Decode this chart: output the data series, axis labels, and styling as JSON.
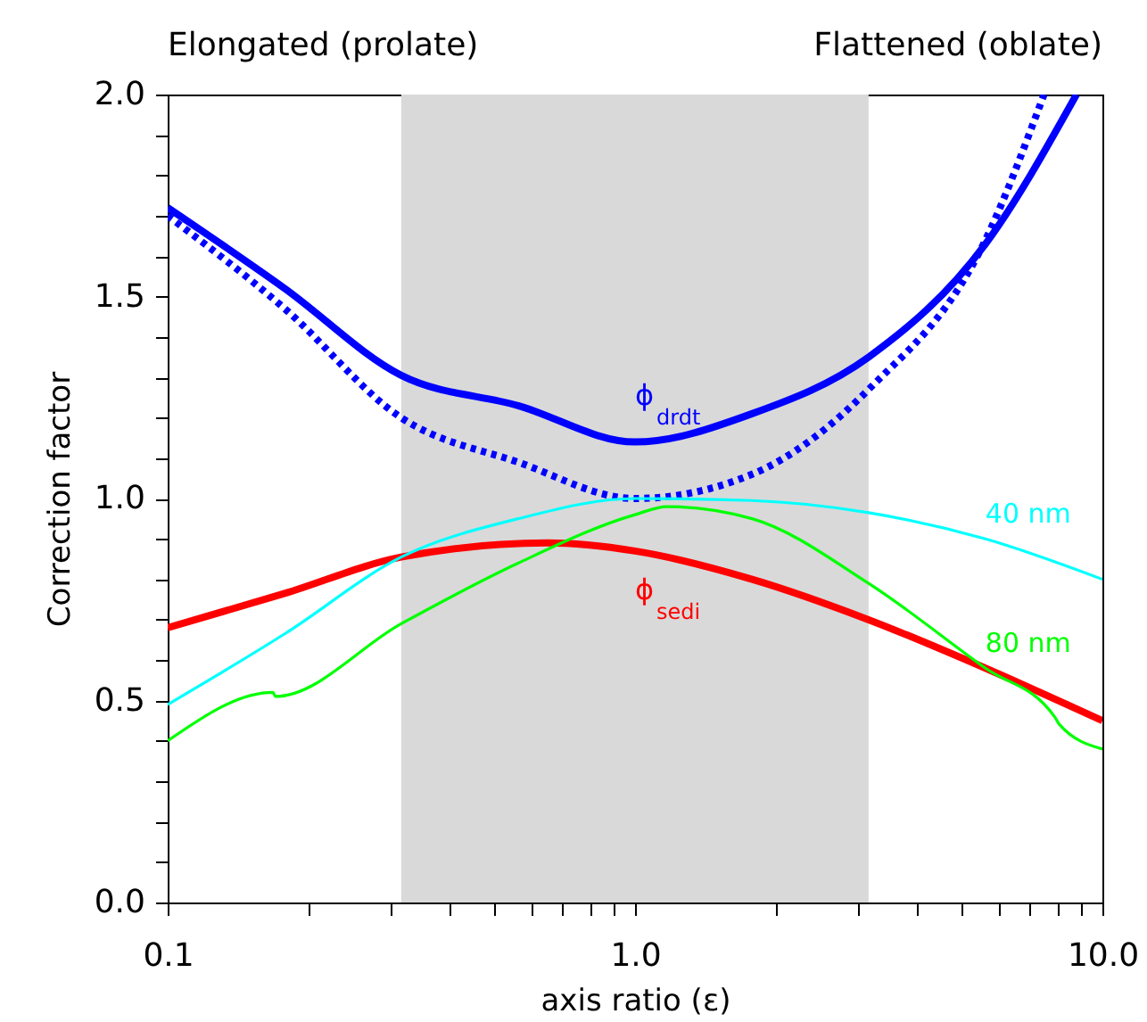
{
  "chart_data": {
    "type": "line",
    "xlabel": "axis ratio (ε)",
    "ylabel": "Correction factor",
    "log": "x",
    "xlim": [
      0.1,
      10
    ],
    "ylim": [
      0,
      2
    ],
    "xticks": [
      {
        "value": 0.1,
        "label": "0.1"
      },
      {
        "value": 0.2,
        "label": null
      },
      {
        "value": 0.3,
        "label": null
      },
      {
        "value": 0.4,
        "label": null
      },
      {
        "value": 0.5,
        "label": null
      },
      {
        "value": 0.6,
        "label": null
      },
      {
        "value": 0.7,
        "label": null
      },
      {
        "value": 0.8,
        "label": null
      },
      {
        "value": 0.9,
        "label": null
      },
      {
        "value": 1,
        "label": "1.0"
      },
      {
        "value": 2,
        "label": null
      },
      {
        "value": 3,
        "label": null
      },
      {
        "value": 4,
        "label": null
      },
      {
        "value": 5,
        "label": null
      },
      {
        "value": 6,
        "label": null
      },
      {
        "value": 7,
        "label": null
      },
      {
        "value": 8,
        "label": null
      },
      {
        "value": 9,
        "label": null
      },
      {
        "value": 10,
        "label": "10.0"
      }
    ],
    "yticks": [
      {
        "value": 0,
        "label": "0.0"
      },
      {
        "value": 0.1,
        "label": null
      },
      {
        "value": 0.2,
        "label": null
      },
      {
        "value": 0.3,
        "label": null
      },
      {
        "value": 0.4,
        "label": null
      },
      {
        "value": 0.5,
        "label": "0.5"
      },
      {
        "value": 0.6,
        "label": null
      },
      {
        "value": 0.7,
        "label": null
      },
      {
        "value": 0.8,
        "label": null
      },
      {
        "value": 0.9,
        "label": null
      },
      {
        "value": 1,
        "label": "1.0"
      },
      {
        "value": 1.1,
        "label": null
      },
      {
        "value": 1.2,
        "label": null
      },
      {
        "value": 1.3,
        "label": null
      },
      {
        "value": 1.4,
        "label": null
      },
      {
        "value": 1.5,
        "label": "1.5"
      },
      {
        "value": 1.6,
        "label": null
      },
      {
        "value": 1.7,
        "label": null
      },
      {
        "value": 1.8,
        "label": null
      },
      {
        "value": 1.9,
        "label": null
      },
      {
        "value": 2,
        "label": "2.0"
      }
    ],
    "grid": false,
    "bands": [
      {
        "axis": "x",
        "from": 0.316,
        "to": 3.16,
        "color": "#d9d9d9"
      }
    ],
    "series": [
      {
        "name": "ϕ$_{drdt}$",
        "color": "#0000ff",
        "line_style": "solid",
        "x": [
          0.1,
          0.178,
          0.316,
          0.562,
          1,
          1.78,
          3.16,
          5.62,
          8.8
        ],
        "values": [
          1.72,
          1.52,
          1.305,
          1.23,
          1.14,
          1.21,
          1.35,
          1.63,
          2.0
        ]
      },
      {
        "color": "#0000ff",
        "line_style": "dotted",
        "x": [
          0.1,
          0.178,
          0.316,
          0.562,
          1,
          1.78,
          3.16,
          5.62,
          7.5
        ],
        "values": [
          1.7,
          1.47,
          1.2,
          1.09,
          1.0,
          1.06,
          1.27,
          1.64,
          2.0
        ]
      },
      {
        "name": "ϕ$_{sedi}$",
        "color": "#ff0000",
        "line_style": "solid",
        "x": [
          0.1,
          0.178,
          0.316,
          0.65,
          1,
          1.78,
          3.16,
          5.62,
          10
        ],
        "values": [
          0.68,
          0.765,
          0.855,
          0.89,
          0.87,
          0.8,
          0.7,
          0.58,
          0.45
        ]
      },
      {
        "name": "40 nm",
        "color": "#00ffff",
        "line_style": "solid",
        "x": [
          0.1,
          0.178,
          0.316,
          0.562,
          1,
          1.78,
          3.16,
          5.62,
          10
        ],
        "values": [
          0.49,
          0.665,
          0.855,
          0.95,
          1.0,
          0.995,
          0.965,
          0.9,
          0.8
        ]
      },
      {
        "name": "80 nm",
        "color": "#00ff00",
        "line_style": "solid",
        "x": [
          0.1,
          0.168,
          0.17,
          0.316,
          0.562,
          1,
          1.17,
          1.78,
          3.16,
          5.62,
          7.9,
          8.1,
          10
        ],
        "values": [
          0.4,
          0.52,
          0.51,
          0.69,
          0.84,
          0.96,
          0.98,
          0.95,
          0.79,
          0.58,
          0.46,
          0.44,
          0.38
        ]
      }
    ],
    "annotations": [
      "Elongated (prolate)",
      "Flattened (oblate)"
    ]
  }
}
